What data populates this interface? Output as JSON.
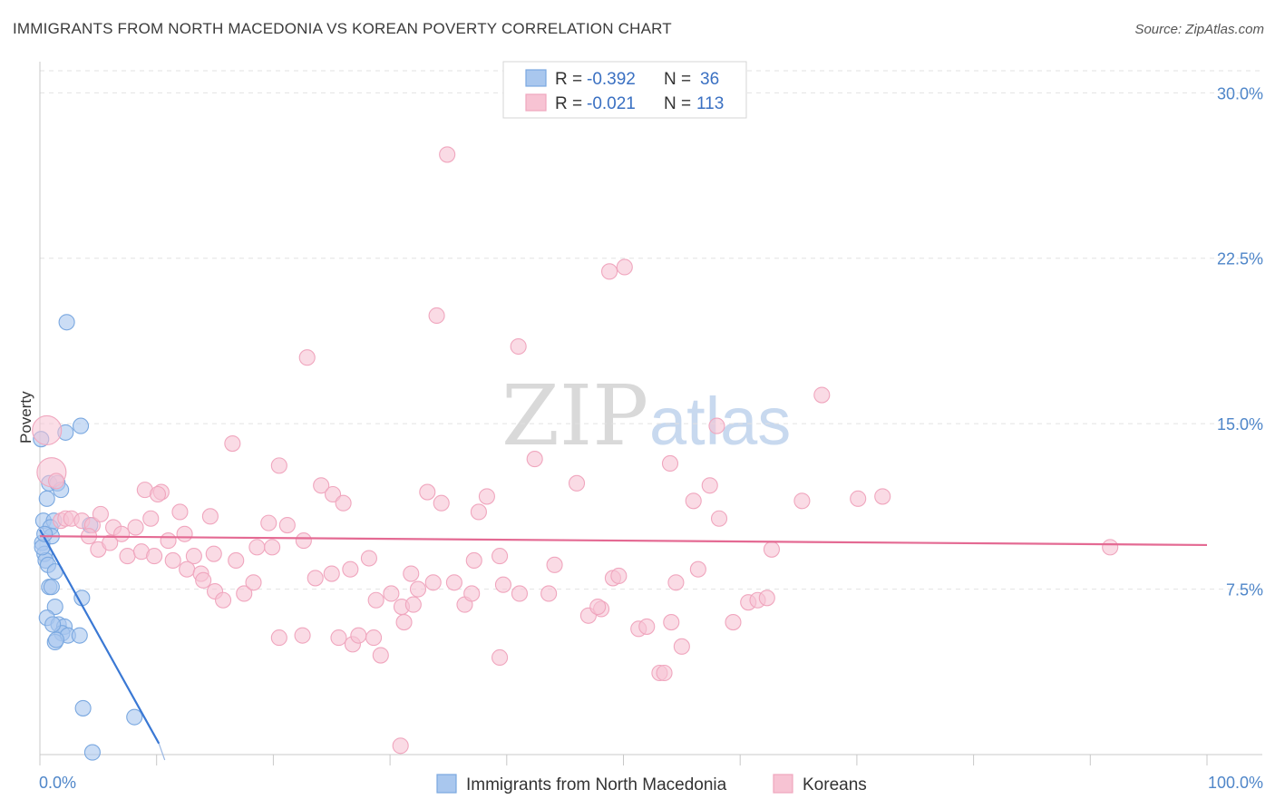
{
  "title": "IMMIGRANTS FROM NORTH MACEDONIA VS KOREAN POVERTY CORRELATION CHART",
  "source": "Source: ZipAtlas.com",
  "watermark": {
    "zip": "ZIP",
    "atlas": "atlas"
  },
  "chart_data": {
    "type": "scatter",
    "ylabel": "Poverty",
    "xlabel": "",
    "xlim": [
      0,
      100
    ],
    "ylim": [
      0,
      31
    ],
    "x_tick_labels": {
      "min": "0.0%",
      "max": "100.0%"
    },
    "y_ticks": [
      {
        "value": 7.5,
        "label": "7.5%"
      },
      {
        "value": 15.0,
        "label": "15.0%"
      },
      {
        "value": 22.5,
        "label": "22.5%"
      },
      {
        "value": 30.0,
        "label": "30.0%"
      }
    ],
    "legend_top": [
      {
        "r_label": "R =",
        "r_value": "-0.392",
        "n_label": "N =",
        "n_value": "36"
      },
      {
        "r_label": "R =",
        "r_value": "-0.021",
        "n_label": "N =",
        "n_value": "113"
      }
    ],
    "series": [
      {
        "name": "Immigrants from North Macedonia",
        "color": "#7aa8e0",
        "fill": "#a9c7ee",
        "line_color": "#3a78d4",
        "trend": {
          "x0": 0,
          "y0": 10.2,
          "x1": 10.2,
          "y1": 0.5
        },
        "points": [
          [
            0.1,
            14.3
          ],
          [
            0.3,
            10.6
          ],
          [
            0.2,
            9.6
          ],
          [
            0.4,
            9.1
          ],
          [
            0.5,
            8.8
          ],
          [
            0.6,
            11.6
          ],
          [
            0.8,
            12.3
          ],
          [
            1.2,
            10.6
          ],
          [
            1.5,
            12.3
          ],
          [
            1.8,
            12.0
          ],
          [
            0.9,
            10.3
          ],
          [
            1.0,
            9.9
          ],
          [
            0.7,
            8.6
          ],
          [
            1.3,
            8.3
          ],
          [
            0.8,
            7.6
          ],
          [
            1.0,
            7.6
          ],
          [
            1.3,
            6.7
          ],
          [
            3.5,
            14.9
          ],
          [
            2.2,
            14.6
          ],
          [
            2.3,
            19.6
          ],
          [
            0.6,
            6.2
          ],
          [
            1.6,
            5.9
          ],
          [
            2.1,
            5.8
          ],
          [
            1.9,
            5.5
          ],
          [
            2.4,
            5.4
          ],
          [
            3.4,
            5.4
          ],
          [
            1.1,
            5.9
          ],
          [
            1.3,
            5.1
          ],
          [
            1.4,
            5.2
          ],
          [
            3.6,
            7.1
          ],
          [
            4.3,
            10.4
          ],
          [
            3.7,
            2.1
          ],
          [
            8.1,
            1.7
          ],
          [
            4.5,
            0.1
          ],
          [
            0.2,
            9.4
          ],
          [
            0.4,
            10.0
          ]
        ]
      },
      {
        "name": "Koreans",
        "color": "#f0a6be",
        "fill": "#f7c3d3",
        "line_color": "#e46a93",
        "trend": {
          "x0": 0,
          "y0": 9.9,
          "x1": 100,
          "y1": 9.5
        },
        "points": [
          [
            0.6,
            14.7
          ],
          [
            1.0,
            12.8
          ],
          [
            1.4,
            12.4
          ],
          [
            1.8,
            10.6
          ],
          [
            2.2,
            10.7
          ],
          [
            2.7,
            10.7
          ],
          [
            3.6,
            10.6
          ],
          [
            4.5,
            10.4
          ],
          [
            5.2,
            10.9
          ],
          [
            6.3,
            10.3
          ],
          [
            7.0,
            10.0
          ],
          [
            8.2,
            10.3
          ],
          [
            9.0,
            12.0
          ],
          [
            10.4,
            11.9
          ],
          [
            12.0,
            11.0
          ],
          [
            12.4,
            10.0
          ],
          [
            13.2,
            9.0
          ],
          [
            14.6,
            10.8
          ],
          [
            16.5,
            14.1
          ],
          [
            4.2,
            9.9
          ],
          [
            5.0,
            9.3
          ],
          [
            6.0,
            9.6
          ],
          [
            7.5,
            9.0
          ],
          [
            8.7,
            9.2
          ],
          [
            9.8,
            9.0
          ],
          [
            11.0,
            9.7
          ],
          [
            11.4,
            8.8
          ],
          [
            12.6,
            8.4
          ],
          [
            13.8,
            8.2
          ],
          [
            14.9,
            9.1
          ],
          [
            16.8,
            8.8
          ],
          [
            18.6,
            9.4
          ],
          [
            19.9,
            9.4
          ],
          [
            21.2,
            10.4
          ],
          [
            22.6,
            9.7
          ],
          [
            23.6,
            8.0
          ],
          [
            24.1,
            12.2
          ],
          [
            25.1,
            11.8
          ],
          [
            26.0,
            11.4
          ],
          [
            26.6,
            8.4
          ],
          [
            28.2,
            8.9
          ],
          [
            28.8,
            7.0
          ],
          [
            30.1,
            7.3
          ],
          [
            31.2,
            6.0
          ],
          [
            31.8,
            8.2
          ],
          [
            33.2,
            11.9
          ],
          [
            33.7,
            7.8
          ],
          [
            34.4,
            11.4
          ],
          [
            35.5,
            7.8
          ],
          [
            36.4,
            6.8
          ],
          [
            37.6,
            11.0
          ],
          [
            38.3,
            11.7
          ],
          [
            39.4,
            9.0
          ],
          [
            39.7,
            7.7
          ],
          [
            41.1,
            7.3
          ],
          [
            42.4,
            13.4
          ],
          [
            44.1,
            8.6
          ],
          [
            46.0,
            12.3
          ],
          [
            47.0,
            6.3
          ],
          [
            48.1,
            6.6
          ],
          [
            49.1,
            8.0
          ],
          [
            49.6,
            8.1
          ],
          [
            51.3,
            5.7
          ],
          [
            52.0,
            5.8
          ],
          [
            53.1,
            3.7
          ],
          [
            53.5,
            3.7
          ],
          [
            54.1,
            6.0
          ],
          [
            54.5,
            7.8
          ],
          [
            55.0,
            4.9
          ],
          [
            56.0,
            11.5
          ],
          [
            56.4,
            8.4
          ],
          [
            57.4,
            12.2
          ],
          [
            58.2,
            10.7
          ],
          [
            59.4,
            6.0
          ],
          [
            60.7,
            6.9
          ],
          [
            61.5,
            7.0
          ],
          [
            62.3,
            7.1
          ],
          [
            62.7,
            9.3
          ],
          [
            65.3,
            11.5
          ],
          [
            67.0,
            16.3
          ],
          [
            70.1,
            11.6
          ],
          [
            72.2,
            11.7
          ],
          [
            91.7,
            9.4
          ],
          [
            48.8,
            21.9
          ],
          [
            50.1,
            22.1
          ],
          [
            34.0,
            19.9
          ],
          [
            41.0,
            18.5
          ],
          [
            22.9,
            18.0
          ],
          [
            34.9,
            27.2
          ],
          [
            58.0,
            14.9
          ],
          [
            54.0,
            13.2
          ],
          [
            20.5,
            13.1
          ],
          [
            9.5,
            10.7
          ],
          [
            10.1,
            11.8
          ],
          [
            15.0,
            7.4
          ],
          [
            15.7,
            7.0
          ],
          [
            17.5,
            7.3
          ],
          [
            18.3,
            7.8
          ],
          [
            20.5,
            5.3
          ],
          [
            22.5,
            5.4
          ],
          [
            25.6,
            5.3
          ],
          [
            26.8,
            5.0
          ],
          [
            27.3,
            5.4
          ],
          [
            28.6,
            5.3
          ],
          [
            29.2,
            4.5
          ],
          [
            31.0,
            6.7
          ],
          [
            32.0,
            6.8
          ],
          [
            37.0,
            7.3
          ],
          [
            39.4,
            4.4
          ],
          [
            30.9,
            0.4
          ],
          [
            47.8,
            6.7
          ],
          [
            43.6,
            7.3
          ],
          [
            37.2,
            8.8
          ],
          [
            32.4,
            7.5
          ],
          [
            25.0,
            8.2
          ],
          [
            19.6,
            10.5
          ],
          [
            14.0,
            7.9
          ]
        ]
      }
    ]
  }
}
